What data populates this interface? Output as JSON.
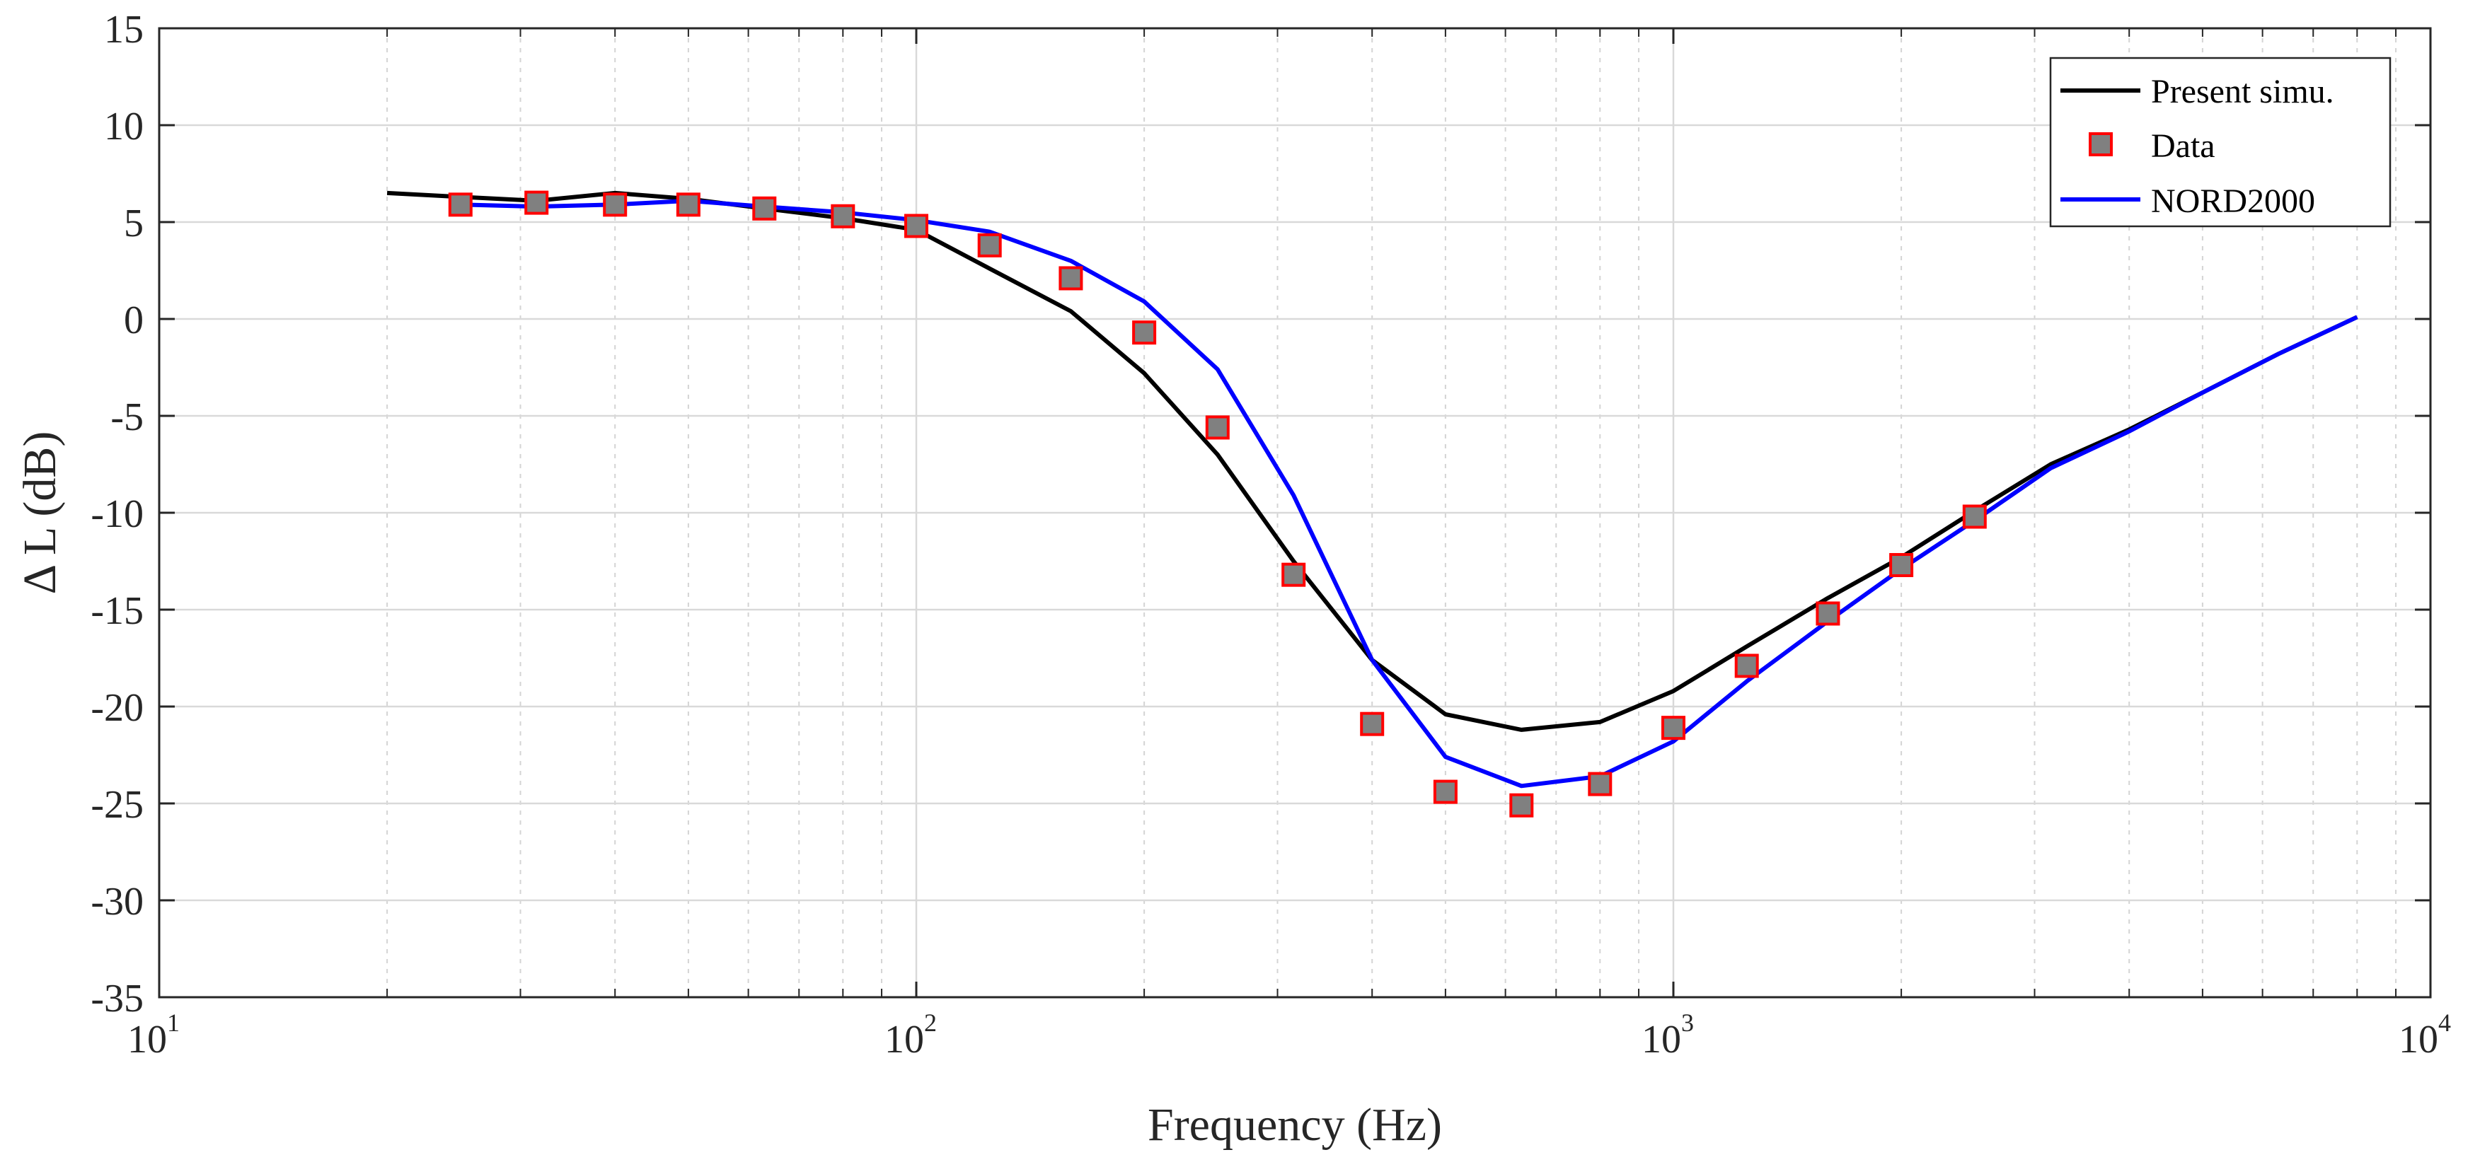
{
  "chart_data": {
    "type": "line",
    "title": "",
    "xlabel": "Frequency (Hz)",
    "ylabel": "Δ L (dB)",
    "xscale": "log",
    "xlim": [
      10,
      10000
    ],
    "ylim": [
      -35,
      15
    ],
    "grid": true,
    "legend_position": "top-right",
    "x_ticks": [
      {
        "value": 10,
        "base": "10",
        "exp": "1"
      },
      {
        "value": 100,
        "base": "10",
        "exp": "2"
      },
      {
        "value": 1000,
        "base": "10",
        "exp": "3"
      },
      {
        "value": 10000,
        "base": "10",
        "exp": "4"
      }
    ],
    "y_ticks": [
      15,
      10,
      5,
      0,
      -5,
      -10,
      -15,
      -20,
      -25,
      -30,
      -35
    ],
    "y_tick_labels": [
      "15",
      "10",
      "5",
      "0",
      "-5",
      "-10",
      "-15",
      "-20",
      "-25",
      "-30",
      "-35"
    ],
    "series": [
      {
        "name": "Present simu.",
        "kind": "line",
        "color": "#000000",
        "x": [
          20,
          25,
          31.5,
          40,
          50,
          63,
          80,
          100,
          125,
          160,
          200,
          250,
          315,
          400,
          500,
          630,
          800,
          1000,
          1250,
          1600,
          2000,
          2500,
          3150,
          4000,
          5000,
          6300,
          8000
        ],
        "y": [
          6.5,
          6.3,
          6.1,
          6.5,
          6.2,
          5.7,
          5.2,
          4.6,
          2.6,
          0.4,
          -2.8,
          -7.0,
          -12.5,
          -17.6,
          -20.4,
          -21.2,
          -20.8,
          -19.2,
          -16.9,
          -14.4,
          -12.3,
          -9.9,
          -7.5,
          -5.7,
          -3.8,
          -1.8,
          0.1
        ]
      },
      {
        "name": "Data",
        "kind": "marker",
        "color": "#ff0000",
        "fill": "#808080",
        "x": [
          25,
          31.5,
          40,
          50,
          63,
          80,
          100,
          125,
          160,
          200,
          250,
          315,
          400,
          500,
          630,
          800,
          1000,
          1250,
          1600,
          2000,
          2500
        ],
        "y": [
          5.9,
          6.0,
          5.9,
          5.9,
          5.7,
          5.3,
          4.8,
          3.8,
          2.1,
          -0.7,
          -5.6,
          -13.2,
          -20.9,
          -24.4,
          -25.1,
          -24.0,
          -21.1,
          -17.9,
          -15.2,
          -12.7,
          -10.2
        ]
      },
      {
        "name": "NORD2000",
        "kind": "line",
        "color": "#0000ff",
        "x": [
          25,
          31.5,
          40,
          50,
          63,
          80,
          100,
          125,
          160,
          200,
          250,
          315,
          400,
          500,
          630,
          800,
          1000,
          1250,
          1600,
          2000,
          2500,
          3150,
          4000,
          5000,
          6300,
          8000
        ],
        "y": [
          5.9,
          5.8,
          5.9,
          6.1,
          5.8,
          5.5,
          5.1,
          4.5,
          3.0,
          0.9,
          -2.6,
          -9.1,
          -17.6,
          -22.6,
          -24.1,
          -23.6,
          -21.8,
          -18.7,
          -15.6,
          -12.9,
          -10.4,
          -7.7,
          -5.8,
          -3.8,
          -1.8,
          0.1
        ]
      }
    ]
  }
}
